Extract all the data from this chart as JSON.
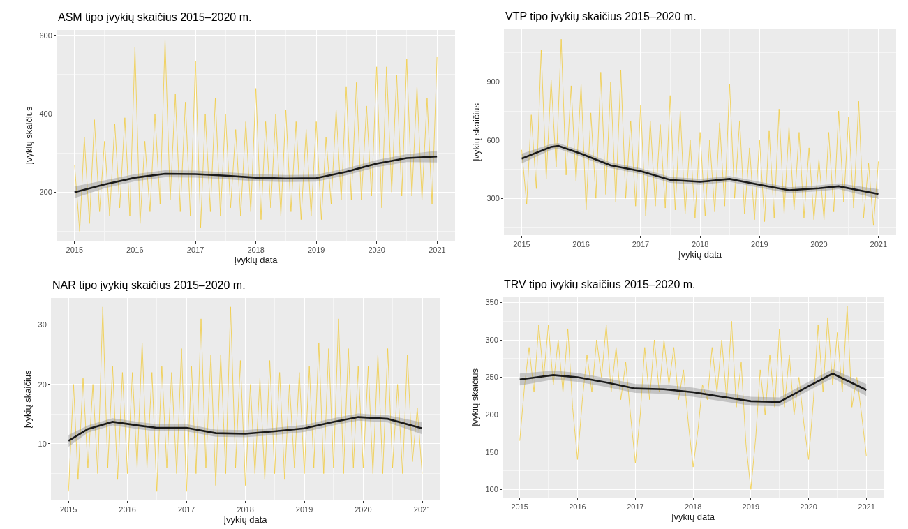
{
  "chart_data": [
    {
      "type": "line",
      "title": "ASM tipo įvykių skaičius 2015–2020 m.",
      "xlabel": "Įvykių data",
      "ylabel": "Įvykių skaičius",
      "grid": true,
      "x": [
        "2015-01-01",
        "2015-02-01",
        "2015-03-01",
        "2015-04-01",
        "2015-05-01",
        "2015-06-01",
        "2015-07-01",
        "2015-08-01",
        "2015-09-01",
        "2015-10-01",
        "2015-11-01",
        "2015-12-01",
        "2016-01-01",
        "2016-02-01",
        "2016-03-01",
        "2016-04-01",
        "2016-05-01",
        "2016-06-01",
        "2016-07-01",
        "2016-08-01",
        "2016-09-01",
        "2016-10-01",
        "2016-11-01",
        "2016-12-01",
        "2017-01-01",
        "2017-02-01",
        "2017-03-01",
        "2017-04-01",
        "2017-05-01",
        "2017-06-01",
        "2017-07-01",
        "2017-08-01",
        "2017-09-01",
        "2017-10-01",
        "2017-11-01",
        "2017-12-01",
        "2018-01-01",
        "2018-02-01",
        "2018-03-01",
        "2018-04-01",
        "2018-05-01",
        "2018-06-01",
        "2018-07-01",
        "2018-08-01",
        "2018-09-01",
        "2018-10-01",
        "2018-11-01",
        "2018-12-01",
        "2019-01-01",
        "2019-02-01",
        "2019-03-01",
        "2019-04-01",
        "2019-05-01",
        "2019-06-01",
        "2019-07-01",
        "2019-08-01",
        "2019-09-01",
        "2019-10-01",
        "2019-11-01",
        "2019-12-01",
        "2020-01-01",
        "2020-02-01",
        "2020-03-01",
        "2020-04-01",
        "2020-05-01",
        "2020-06-01",
        "2020-07-01",
        "2020-08-01",
        "2020-09-01",
        "2020-10-01",
        "2020-11-01",
        "2020-12-01",
        "2020-12-31"
      ],
      "xlim": [
        "2014-09-14",
        "2021-04-19"
      ],
      "xticks": [
        "2015",
        "2016",
        "2017",
        "2018",
        "2019",
        "2020",
        "2021"
      ],
      "ylim": [
        76,
        614
      ],
      "yticks": [
        200,
        400,
        600
      ],
      "series": [
        {
          "color": "#f3c623",
          "values": [
            270,
            100,
            340,
            120,
            385,
            150,
            330,
            140,
            375,
            160,
            390,
            140,
            570,
            120,
            330,
            150,
            400,
            170,
            590,
            180,
            450,
            150,
            430,
            140,
            535,
            110,
            400,
            150,
            440,
            140,
            400,
            160,
            360,
            140,
            380,
            150,
            465,
            130,
            380,
            160,
            400,
            140,
            410,
            150,
            380,
            130,
            360,
            140,
            380,
            130,
            340,
            170,
            410,
            180,
            470,
            180,
            480,
            180,
            420,
            190,
            520,
            160,
            520,
            200,
            500,
            190,
            540,
            190,
            470,
            180,
            440,
            170,
            545
          ]
        },
        {
          "color": "#1a1a1a",
          "x": [
            "2015-01-01",
            "2015-07-01",
            "2016-01-01",
            "2016-07-01",
            "2017-01-01",
            "2017-07-01",
            "2018-01-01",
            "2018-07-01",
            "2019-01-01",
            "2019-07-01",
            "2020-01-01",
            "2020-07-01",
            "2020-12-31"
          ],
          "values": [
            200,
            220,
            237,
            247,
            246,
            242,
            237,
            235,
            236,
            252,
            273,
            287,
            291
          ],
          "lower": [
            185,
            210,
            228,
            238,
            237,
            233,
            228,
            226,
            227,
            243,
            264,
            277,
            276
          ],
          "upper": [
            215,
            230,
            246,
            256,
            255,
            251,
            246,
            244,
            245,
            261,
            282,
            297,
            306
          ]
        }
      ]
    },
    {
      "type": "line",
      "title": "VTP tipo įvykių skaičius 2015–2020 m.",
      "xlabel": "Įvykių data",
      "ylabel": "Įvykių skaičius",
      "grid": true,
      "x": [
        "2015-01-01",
        "2015-02-01",
        "2015-03-01",
        "2015-04-01",
        "2015-05-01",
        "2015-06-01",
        "2015-07-01",
        "2015-08-01",
        "2015-09-01",
        "2015-10-01",
        "2015-11-01",
        "2015-12-01",
        "2016-01-01",
        "2016-02-01",
        "2016-03-01",
        "2016-04-01",
        "2016-05-01",
        "2016-06-01",
        "2016-07-01",
        "2016-08-01",
        "2016-09-01",
        "2016-10-01",
        "2016-11-01",
        "2016-12-01",
        "2017-01-01",
        "2017-02-01",
        "2017-03-01",
        "2017-04-01",
        "2017-05-01",
        "2017-06-01",
        "2017-07-01",
        "2017-08-01",
        "2017-09-01",
        "2017-10-01",
        "2017-11-01",
        "2017-12-01",
        "2018-01-01",
        "2018-02-01",
        "2018-03-01",
        "2018-04-01",
        "2018-05-01",
        "2018-06-01",
        "2018-07-01",
        "2018-08-01",
        "2018-09-01",
        "2018-10-01",
        "2018-11-01",
        "2018-12-01",
        "2019-01-01",
        "2019-02-01",
        "2019-03-01",
        "2019-04-01",
        "2019-05-01",
        "2019-06-01",
        "2019-07-01",
        "2019-08-01",
        "2019-09-01",
        "2019-10-01",
        "2019-11-01",
        "2019-12-01",
        "2020-01-01",
        "2020-02-01",
        "2020-03-01",
        "2020-04-01",
        "2020-05-01",
        "2020-06-01",
        "2020-07-01",
        "2020-08-01",
        "2020-09-01",
        "2020-10-01",
        "2020-11-01",
        "2020-12-01",
        "2020-12-31"
      ],
      "xlim": [
        "2014-09-14",
        "2021-04-19"
      ],
      "xticks": [
        "2015",
        "2016",
        "2017",
        "2018",
        "2019",
        "2020",
        "2021"
      ],
      "ylim": [
        110,
        1171
      ],
      "yticks": [
        300,
        600,
        900
      ],
      "series": [
        {
          "color": "#f3c623",
          "values": [
            550,
            270,
            730,
            350,
            1065,
            400,
            910,
            460,
            1120,
            420,
            880,
            390,
            890,
            240,
            740,
            300,
            950,
            320,
            900,
            280,
            960,
            300,
            700,
            260,
            780,
            210,
            700,
            260,
            680,
            250,
            830,
            240,
            750,
            220,
            600,
            200,
            640,
            210,
            600,
            230,
            690,
            260,
            890,
            300,
            700,
            220,
            560,
            190,
            600,
            180,
            650,
            200,
            760,
            220,
            670,
            240,
            640,
            200,
            560,
            190,
            500,
            190,
            640,
            230,
            750,
            280,
            720,
            250,
            800,
            200,
            480,
            160,
            490
          ]
        },
        {
          "color": "#1a1a1a",
          "x": [
            "2015-01-01",
            "2015-07-01",
            "2015-08-15",
            "2016-01-01",
            "2016-07-01",
            "2017-01-01",
            "2017-07-01",
            "2018-01-01",
            "2018-07-01",
            "2019-01-01",
            "2019-07-01",
            "2020-01-01",
            "2020-05-01",
            "2020-12-31"
          ],
          "values": [
            505,
            565,
            570,
            530,
            470,
            440,
            395,
            385,
            400,
            370,
            342,
            352,
            362,
            322
          ],
          "lower": [
            480,
            550,
            555,
            515,
            455,
            425,
            380,
            370,
            385,
            355,
            327,
            337,
            347,
            297
          ],
          "upper": [
            530,
            580,
            585,
            545,
            485,
            455,
            410,
            400,
            415,
            385,
            357,
            367,
            377,
            347
          ]
        }
      ]
    },
    {
      "type": "line",
      "title": "NAR tipo įvykių skaičius 2015–2020 m.",
      "xlabel": "Įvykių data",
      "ylabel": "Įvykių skaičius",
      "grid": true,
      "x": [
        "2015-01-01",
        "2015-02-01",
        "2015-03-01",
        "2015-04-01",
        "2015-05-01",
        "2015-06-01",
        "2015-07-01",
        "2015-08-01",
        "2015-09-01",
        "2015-10-01",
        "2015-11-01",
        "2015-12-01",
        "2016-01-01",
        "2016-02-01",
        "2016-03-01",
        "2016-04-01",
        "2016-05-01",
        "2016-06-01",
        "2016-07-01",
        "2016-08-01",
        "2016-09-01",
        "2016-10-01",
        "2016-11-01",
        "2016-12-01",
        "2017-01-01",
        "2017-02-01",
        "2017-03-01",
        "2017-04-01",
        "2017-05-01",
        "2017-06-01",
        "2017-07-01",
        "2017-08-01",
        "2017-09-01",
        "2017-10-01",
        "2017-11-01",
        "2017-12-01",
        "2018-01-01",
        "2018-02-01",
        "2018-03-01",
        "2018-04-01",
        "2018-05-01",
        "2018-06-01",
        "2018-07-01",
        "2018-08-01",
        "2018-09-01",
        "2018-10-01",
        "2018-11-01",
        "2018-12-01",
        "2019-01-01",
        "2019-02-01",
        "2019-03-01",
        "2019-04-01",
        "2019-05-01",
        "2019-06-01",
        "2019-07-01",
        "2019-08-01",
        "2019-09-01",
        "2019-10-01",
        "2019-11-01",
        "2019-12-01",
        "2020-01-01",
        "2020-02-01",
        "2020-03-01",
        "2020-04-01",
        "2020-05-01",
        "2020-06-01",
        "2020-07-01",
        "2020-08-01",
        "2020-09-01",
        "2020-10-01",
        "2020-11-01",
        "2020-12-01",
        "2020-12-31"
      ],
      "xlim": [
        "2014-09-14",
        "2021-04-19"
      ],
      "xticks": [
        "2015",
        "2016",
        "2017",
        "2018",
        "2019",
        "2020",
        "2021"
      ],
      "ylim": [
        0.5,
        34.5
      ],
      "yticks": [
        10,
        20,
        30
      ],
      "series": [
        {
          "color": "#f3c623",
          "values": [
            2,
            20,
            4,
            21,
            6,
            20,
            5,
            33,
            6,
            23,
            4,
            22,
            5,
            22,
            6,
            27,
            6,
            22,
            2,
            23,
            6,
            22,
            5,
            26,
            2,
            23,
            5,
            31,
            6,
            25,
            3,
            25,
            5,
            33,
            6,
            24,
            3,
            20,
            5,
            21,
            4,
            24,
            5,
            22,
            4,
            20,
            6,
            22,
            5,
            23,
            6,
            27,
            5,
            26,
            6,
            31,
            5,
            26,
            6,
            23,
            6,
            23,
            5,
            25,
            5,
            26,
            6,
            20,
            5,
            25,
            7,
            16,
            5
          ]
        },
        {
          "color": "#1a1a1a",
          "x": [
            "2015-01-01",
            "2015-05-01",
            "2015-10-01",
            "2016-04-01",
            "2016-07-01",
            "2017-01-01",
            "2017-07-01",
            "2018-01-01",
            "2018-07-01",
            "2019-01-01",
            "2019-07-01",
            "2019-12-01",
            "2020-06-01",
            "2020-12-31"
          ],
          "values": [
            10.5,
            12.5,
            13.7,
            13,
            12.7,
            12.7,
            11.8,
            11.7,
            12.1,
            12.6,
            13.7,
            14.5,
            14.2,
            12.6
          ],
          "lower": [
            9.5,
            11.9,
            13.1,
            12.4,
            12.1,
            12.1,
            11.2,
            11.1,
            11.5,
            12,
            13.1,
            13.9,
            13.6,
            11.6
          ],
          "upper": [
            11.5,
            13.1,
            14.3,
            13.6,
            13.3,
            13.3,
            12.4,
            12.3,
            12.7,
            13.2,
            14.3,
            15.1,
            14.8,
            13.6
          ]
        }
      ]
    },
    {
      "type": "line",
      "title": "TRV tipo įvykių skaičius 2015–2020 m.",
      "xlabel": "Įvykių data",
      "ylabel": "Įvykių skaičius",
      "grid": true,
      "x": [
        "2015-01-01",
        "2015-02-01",
        "2015-03-01",
        "2015-04-01",
        "2015-05-01",
        "2015-06-01",
        "2015-07-01",
        "2015-08-01",
        "2015-09-01",
        "2015-10-01",
        "2015-11-01",
        "2015-12-01",
        "2016-01-01",
        "2016-02-01",
        "2016-03-01",
        "2016-04-01",
        "2016-05-01",
        "2016-06-01",
        "2016-07-01",
        "2016-08-01",
        "2016-09-01",
        "2016-10-01",
        "2016-11-01",
        "2016-12-01",
        "2017-01-01",
        "2017-02-01",
        "2017-03-01",
        "2017-04-01",
        "2017-05-01",
        "2017-06-01",
        "2017-07-01",
        "2017-08-01",
        "2017-09-01",
        "2017-10-01",
        "2017-11-01",
        "2017-12-01",
        "2018-01-01",
        "2018-02-01",
        "2018-03-01",
        "2018-04-01",
        "2018-05-01",
        "2018-06-01",
        "2018-07-01",
        "2018-08-01",
        "2018-09-01",
        "2018-10-01",
        "2018-11-01",
        "2018-12-01",
        "2019-01-01",
        "2019-02-01",
        "2019-03-01",
        "2019-04-01",
        "2019-05-01",
        "2019-06-01",
        "2019-07-01",
        "2019-08-01",
        "2019-09-01",
        "2019-10-01",
        "2019-11-01",
        "2019-12-01",
        "2020-01-01",
        "2020-02-01",
        "2020-03-01",
        "2020-04-01",
        "2020-05-01",
        "2020-06-01",
        "2020-07-01",
        "2020-08-01",
        "2020-09-01",
        "2020-10-01",
        "2020-11-01",
        "2020-12-01",
        "2020-12-31"
      ],
      "xlim": [
        "2014-09-14",
        "2021-04-19"
      ],
      "xticks": [
        "2015",
        "2016",
        "2017",
        "2018",
        "2019",
        "2020",
        "2021"
      ],
      "ylim": [
        89,
        357
      ],
      "yticks": [
        100,
        150,
        200,
        250,
        300,
        350
      ],
      "series": [
        {
          "color": "#f3c623",
          "values": [
            165,
            240,
            290,
            230,
            320,
            250,
            320,
            240,
            300,
            230,
            315,
            210,
            140,
            220,
            280,
            230,
            300,
            250,
            320,
            230,
            290,
            220,
            270,
            200,
            135,
            200,
            290,
            220,
            300,
            230,
            300,
            240,
            290,
            220,
            260,
            190,
            130,
            180,
            240,
            220,
            290,
            230,
            300,
            220,
            325,
            210,
            270,
            160,
            100,
            170,
            260,
            200,
            280,
            210,
            315,
            210,
            280,
            200,
            250,
            190,
            140,
            220,
            320,
            230,
            330,
            240,
            310,
            230,
            345,
            210,
            250,
            200,
            145
          ]
        },
        {
          "color": "#1a1a1a",
          "x": [
            "2015-01-01",
            "2015-08-01",
            "2016-01-01",
            "2016-07-01",
            "2017-01-01",
            "2017-07-01",
            "2018-01-01",
            "2018-07-01",
            "2019-01-01",
            "2019-07-01",
            "2020-01-01",
            "2020-06-01",
            "2020-12-31"
          ],
          "values": [
            247,
            253,
            250,
            243,
            235,
            234,
            230,
            224,
            218,
            217,
            238,
            255,
            233
          ],
          "lower": [
            239,
            247,
            244,
            237,
            229,
            228,
            224,
            218,
            212,
            211,
            232,
            249,
            225
          ],
          "upper": [
            255,
            259,
            256,
            249,
            241,
            240,
            236,
            230,
            224,
            223,
            244,
            261,
            241
          ]
        }
      ]
    }
  ]
}
